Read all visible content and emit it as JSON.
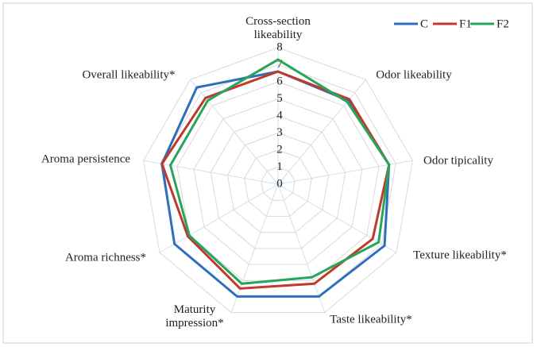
{
  "chart_data": {
    "type": "radar",
    "categories": [
      "Cross-section likeability",
      "Odor likeability",
      "Odor tipicality",
      "Texture likeability*",
      "Taste likeability*",
      "Maturity impression*",
      "Aroma richness*",
      "Aroma persistence",
      "Overall likeability*"
    ],
    "series": [
      {
        "name": "C",
        "color": "#2e6fbd",
        "values": [
          6.6,
          6.4,
          6.6,
          7.2,
          7.0,
          7.0,
          7.0,
          6.9,
          7.4
        ]
      },
      {
        "name": "F1",
        "color": "#c0392b",
        "values": [
          6.6,
          6.5,
          6.6,
          6.4,
          6.2,
          6.5,
          6.1,
          6.9,
          6.6
        ]
      },
      {
        "name": "F2",
        "color": "#27a55a",
        "values": [
          7.3,
          6.3,
          6.6,
          6.8,
          5.8,
          6.2,
          6.0,
          6.4,
          6.4
        ]
      }
    ],
    "ylim": [
      0,
      8
    ],
    "yticks": [
      0,
      1,
      2,
      3,
      4,
      5,
      6,
      7,
      8
    ],
    "grid": true,
    "legend": "top-right"
  }
}
